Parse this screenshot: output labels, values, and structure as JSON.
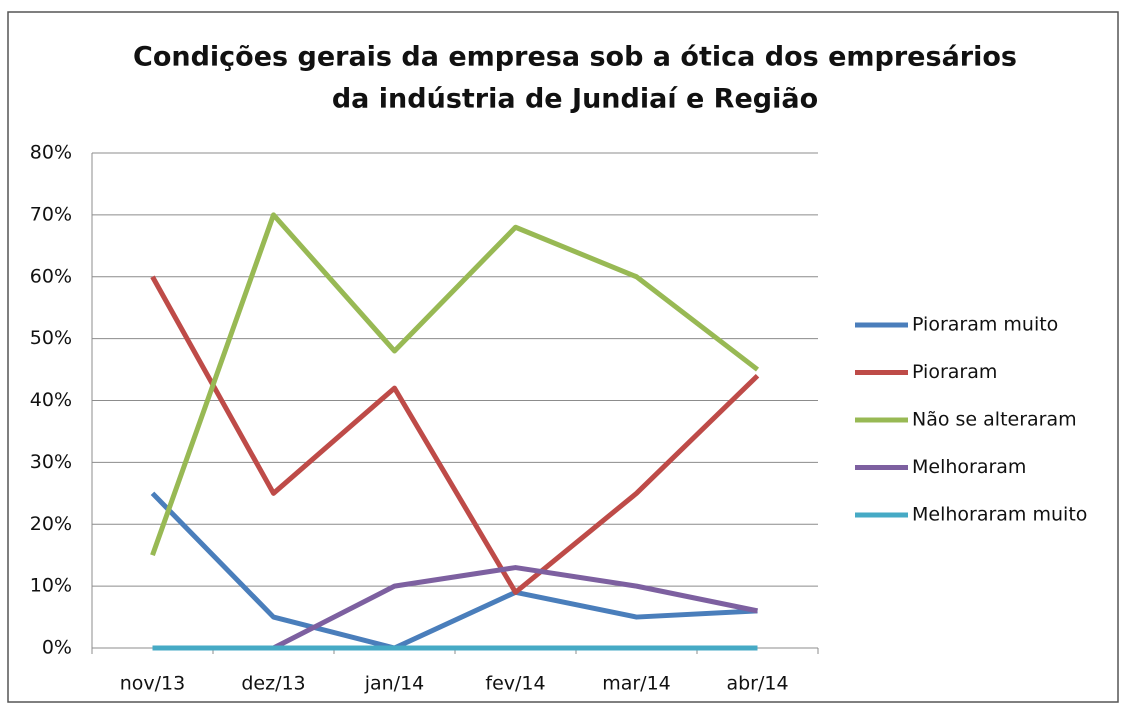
{
  "chart_data": {
    "type": "line",
    "title": [
      "Condições gerais da empresa sob a ótica dos empresários",
      "da indústria de Jundiaí e Região"
    ],
    "categories": [
      "nov/13",
      "dez/13",
      "jan/14",
      "fev/14",
      "mar/14",
      "abr/14"
    ],
    "series": [
      {
        "name": "Pioraram muito",
        "color": "#4a7ebb",
        "values": [
          25,
          5,
          0,
          9,
          5,
          6
        ]
      },
      {
        "name": "Pioraram",
        "color": "#be4b48",
        "values": [
          60,
          25,
          42,
          9,
          25,
          44
        ]
      },
      {
        "name": "Não se alteraram",
        "color": "#98b954",
        "values": [
          15,
          70,
          48,
          68,
          60,
          45
        ]
      },
      {
        "name": "Melhoraram",
        "color": "#7d60a0",
        "values": [
          null,
          0,
          10,
          13,
          10,
          6
        ]
      },
      {
        "name": "Melhoraram muito",
        "color": "#46aac5",
        "values": [
          0,
          0,
          0,
          0,
          0,
          0
        ]
      }
    ],
    "ylim": [
      0,
      80
    ],
    "yticks": [
      {
        "value": 0,
        "label": "0%"
      },
      {
        "value": 10,
        "label": "10%"
      },
      {
        "value": 20,
        "label": "20%"
      },
      {
        "value": 30,
        "label": "30%"
      },
      {
        "value": 40,
        "label": "40%"
      },
      {
        "value": 50,
        "label": "50%"
      },
      {
        "value": 60,
        "label": "60%"
      },
      {
        "value": 70,
        "label": "70%"
      },
      {
        "value": 80,
        "label": "80%"
      }
    ],
    "grid": true,
    "legend": "right"
  }
}
